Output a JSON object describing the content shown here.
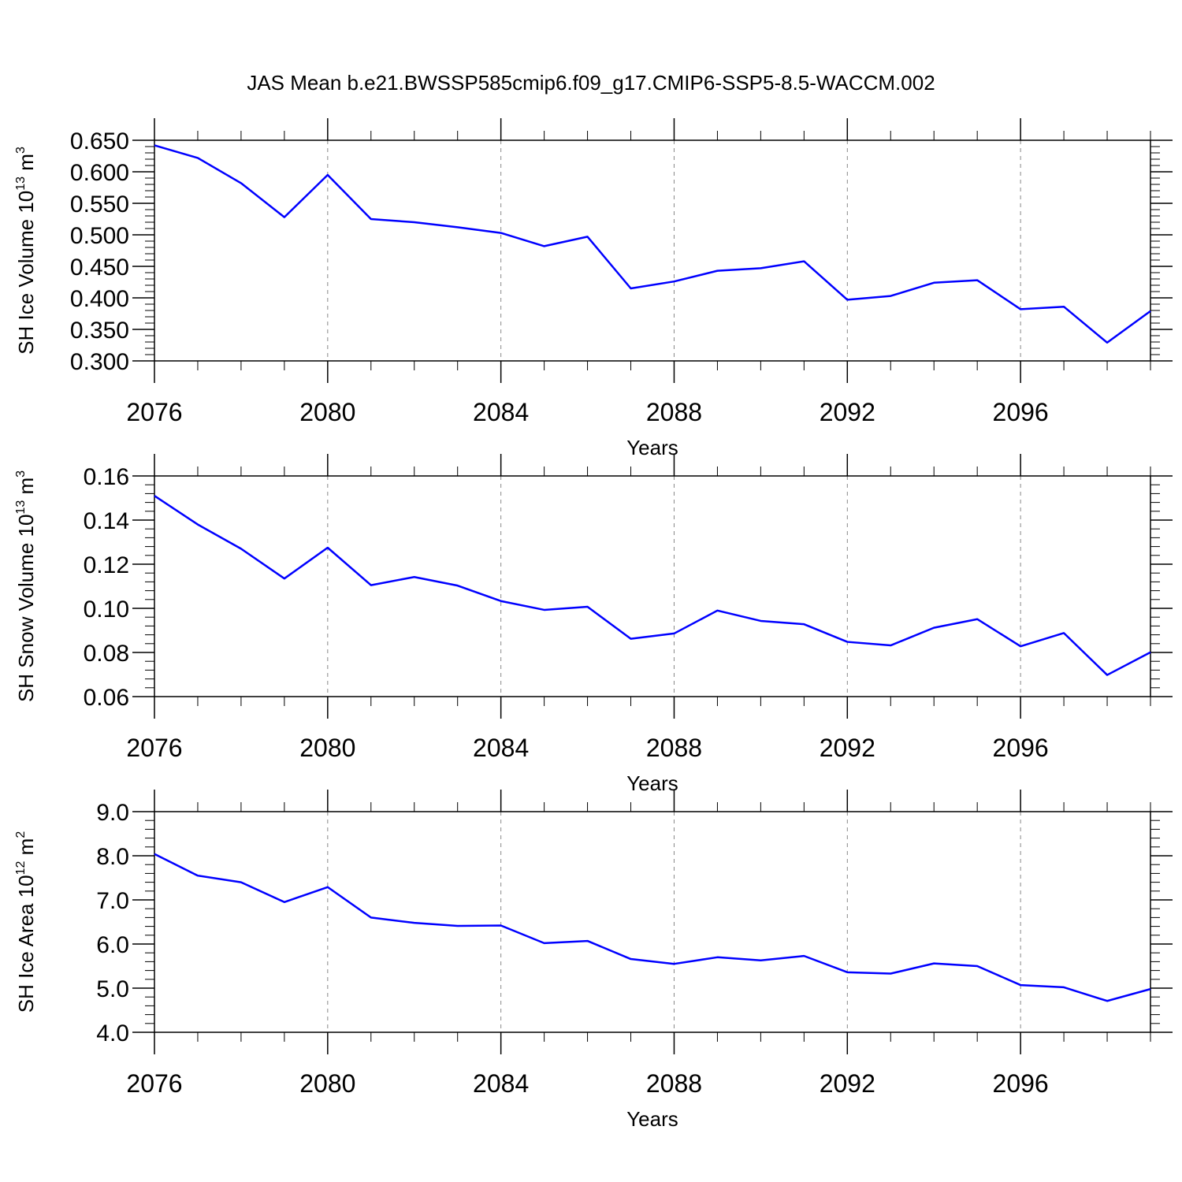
{
  "title": "JAS Mean b.e21.BWSSP585cmip6.f09_g17.CMIP6-SSP5-8.5-WACCM.002",
  "colors": {
    "series": "#0000ff",
    "axis": "#000000",
    "grid": "#888888"
  },
  "chart_data": [
    {
      "type": "line",
      "ylabel": {
        "base": "SH Ice Volume 10",
        "exp": "13",
        "unit": " m",
        "unit_exp": "3"
      },
      "xlabel": "Years",
      "xlim": [
        2076,
        2099
      ],
      "x_major_ticks": [
        2076,
        2080,
        2084,
        2088,
        2092,
        2096
      ],
      "ylim": [
        0.3,
        0.65
      ],
      "y_major_ticks": [
        0.3,
        0.35,
        0.4,
        0.45,
        0.5,
        0.55,
        0.6,
        0.65
      ],
      "y_tick_labels": [
        "0.300",
        "0.350",
        "0.400",
        "0.450",
        "0.500",
        "0.550",
        "0.600",
        "0.650"
      ],
      "y_minor_step": 0.01,
      "x": [
        2076,
        2077,
        2078,
        2079,
        2080,
        2081,
        2082,
        2083,
        2084,
        2085,
        2086,
        2087,
        2088,
        2089,
        2090,
        2091,
        2092,
        2093,
        2094,
        2095,
        2096,
        2097,
        2098,
        2099
      ],
      "series": [
        {
          "name": "SH Ice Volume",
          "values": [
            0.642,
            0.622,
            0.582,
            0.528,
            0.595,
            0.525,
            0.52,
            0.512,
            0.503,
            0.482,
            0.497,
            0.415,
            0.426,
            0.443,
            0.447,
            0.458,
            0.397,
            0.403,
            0.424,
            0.428,
            0.382,
            0.386,
            0.329,
            0.379
          ]
        }
      ]
    },
    {
      "type": "line",
      "ylabel": {
        "base": "SH Snow Volume 10",
        "exp": "13",
        "unit": " m",
        "unit_exp": "3"
      },
      "xlabel": "Years",
      "xlim": [
        2076,
        2099
      ],
      "x_major_ticks": [
        2076,
        2080,
        2084,
        2088,
        2092,
        2096
      ],
      "ylim": [
        0.06,
        0.16
      ],
      "y_major_ticks": [
        0.06,
        0.08,
        0.1,
        0.12,
        0.14,
        0.16
      ],
      "y_tick_labels": [
        "0.06",
        "0.08",
        "0.10",
        "0.12",
        "0.14",
        "0.16"
      ],
      "y_minor_step": 0.004,
      "x": [
        2076,
        2077,
        2078,
        2079,
        2080,
        2081,
        2082,
        2083,
        2084,
        2085,
        2086,
        2087,
        2088,
        2089,
        2090,
        2091,
        2092,
        2093,
        2094,
        2095,
        2096,
        2097,
        2098,
        2099
      ],
      "series": [
        {
          "name": "SH Snow Volume",
          "values": [
            0.151,
            0.138,
            0.127,
            0.1135,
            0.1275,
            0.1105,
            0.1142,
            0.1103,
            0.1033,
            0.0993,
            0.1007,
            0.0862,
            0.0886,
            0.099,
            0.0943,
            0.0928,
            0.0848,
            0.0832,
            0.0912,
            0.0951,
            0.0828,
            0.0888,
            0.0698,
            0.0801
          ]
        }
      ]
    },
    {
      "type": "line",
      "ylabel": {
        "base": "SH Ice Area 10",
        "exp": "12",
        "unit": " m",
        "unit_exp": "2"
      },
      "xlabel": "Years",
      "xlim": [
        2076,
        2099
      ],
      "x_major_ticks": [
        2076,
        2080,
        2084,
        2088,
        2092,
        2096
      ],
      "ylim": [
        4.0,
        9.0
      ],
      "y_major_ticks": [
        4.0,
        5.0,
        6.0,
        7.0,
        8.0,
        9.0
      ],
      "y_tick_labels": [
        "4.0",
        "5.0",
        "6.0",
        "7.0",
        "8.0",
        "9.0"
      ],
      "y_minor_step": 0.2,
      "x": [
        2076,
        2077,
        2078,
        2079,
        2080,
        2081,
        2082,
        2083,
        2084,
        2085,
        2086,
        2087,
        2088,
        2089,
        2090,
        2091,
        2092,
        2093,
        2094,
        2095,
        2096,
        2097,
        2098,
        2099
      ],
      "series": [
        {
          "name": "SH Ice Area",
          "values": [
            8.04,
            7.55,
            7.4,
            6.95,
            7.29,
            6.6,
            6.48,
            6.41,
            6.42,
            6.02,
            6.07,
            5.66,
            5.55,
            5.7,
            5.63,
            5.73,
            5.36,
            5.33,
            5.56,
            5.5,
            5.07,
            5.02,
            4.71,
            4.98
          ]
        }
      ]
    }
  ]
}
